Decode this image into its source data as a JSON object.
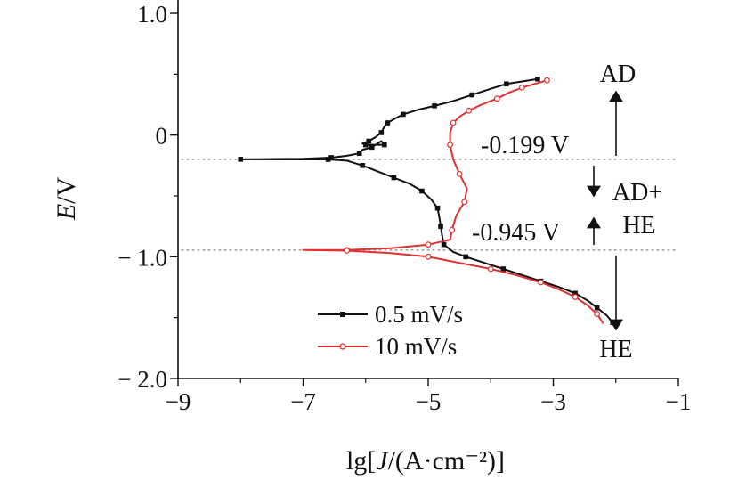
{
  "chart_data": {
    "type": "line",
    "xlabel": "lg[J/(A·cm⁻²)]",
    "ylabel": "E/V",
    "xlim": [
      -9,
      -1
    ],
    "ylim": [
      -2.0,
      1.0
    ],
    "x_ticks": [
      -9,
      -7,
      -5,
      -3,
      -1
    ],
    "x_tick_labels": [
      "−9",
      "−7",
      "−5",
      "−3",
      "−1"
    ],
    "y_ticks": [
      1.0,
      0,
      -1.0,
      -2.0
    ],
    "y_tick_labels": [
      "1.0",
      "0",
      "− 1.0",
      "− 2.0"
    ],
    "grid": false,
    "legend_position": "bottom-left",
    "reference_lines": [
      {
        "y": -0.199,
        "label": "-0.199 V"
      },
      {
        "y": -0.945,
        "label": "-0.945 V"
      }
    ],
    "region_labels": [
      "AD",
      "AD+",
      "HE",
      "HE"
    ],
    "series": [
      {
        "name": "0.5 mV/s",
        "color": "#111111",
        "marker": "filled-square",
        "points": [
          [
            -3.25,
            0.46
          ],
          [
            -3.5,
            0.44
          ],
          [
            -3.75,
            0.42
          ],
          [
            -4.0,
            0.38
          ],
          [
            -4.3,
            0.33
          ],
          [
            -4.6,
            0.28
          ],
          [
            -4.9,
            0.24
          ],
          [
            -5.15,
            0.21
          ],
          [
            -5.4,
            0.17
          ],
          [
            -5.55,
            0.13
          ],
          [
            -5.65,
            0.1
          ],
          [
            -5.7,
            0.07
          ],
          [
            -5.75,
            0.02
          ],
          [
            -5.85,
            -0.02
          ],
          [
            -5.95,
            -0.05
          ],
          [
            -6.05,
            -0.07
          ],
          [
            -6.0,
            -0.08
          ],
          [
            -5.85,
            -0.08
          ],
          [
            -5.7,
            -0.08
          ],
          [
            -5.75,
            -0.05
          ],
          [
            -5.9,
            -0.1
          ],
          [
            -6.05,
            -0.12
          ],
          [
            -6.1,
            -0.15
          ],
          [
            -6.3,
            -0.17
          ],
          [
            -6.55,
            -0.185
          ],
          [
            -7.0,
            -0.194
          ],
          [
            -8.0,
            -0.199
          ],
          [
            -7.0,
            -0.2
          ],
          [
            -6.6,
            -0.2
          ],
          [
            -6.3,
            -0.21
          ],
          [
            -6.05,
            -0.25
          ],
          [
            -5.8,
            -0.3
          ],
          [
            -5.55,
            -0.35
          ],
          [
            -5.3,
            -0.4
          ],
          [
            -5.1,
            -0.46
          ],
          [
            -4.95,
            -0.53
          ],
          [
            -4.85,
            -0.6
          ],
          [
            -4.82,
            -0.68
          ],
          [
            -4.8,
            -0.75
          ],
          [
            -4.78,
            -0.82
          ],
          [
            -4.75,
            -0.9
          ],
          [
            -4.6,
            -0.96
          ],
          [
            -4.4,
            -1.0
          ],
          [
            -4.1,
            -1.05
          ],
          [
            -3.8,
            -1.1
          ],
          [
            -3.5,
            -1.15
          ],
          [
            -3.2,
            -1.2
          ],
          [
            -2.9,
            -1.25
          ],
          [
            -2.65,
            -1.3
          ],
          [
            -2.45,
            -1.36
          ],
          [
            -2.3,
            -1.42
          ],
          [
            -2.15,
            -1.48
          ],
          [
            -2.05,
            -1.54
          ]
        ]
      },
      {
        "name": "10 mV/s",
        "color": "#e03030",
        "marker": "open-circle",
        "points": [
          [
            -3.1,
            0.45
          ],
          [
            -3.3,
            0.42
          ],
          [
            -3.5,
            0.39
          ],
          [
            -3.7,
            0.35
          ],
          [
            -3.9,
            0.3
          ],
          [
            -4.15,
            0.25
          ],
          [
            -4.35,
            0.2
          ],
          [
            -4.5,
            0.15
          ],
          [
            -4.6,
            0.1
          ],
          [
            -4.65,
            0.02
          ],
          [
            -4.65,
            -0.08
          ],
          [
            -4.6,
            -0.2
          ],
          [
            -4.5,
            -0.32
          ],
          [
            -4.38,
            -0.44
          ],
          [
            -4.42,
            -0.55
          ],
          [
            -4.55,
            -0.66
          ],
          [
            -4.62,
            -0.78
          ],
          [
            -4.65,
            -0.86
          ],
          [
            -5.0,
            -0.9
          ],
          [
            -5.6,
            -0.93
          ],
          [
            -6.3,
            -0.945
          ],
          [
            -7.0,
            -0.945
          ],
          [
            -6.3,
            -0.95
          ],
          [
            -5.6,
            -0.97
          ],
          [
            -5.0,
            -1.0
          ],
          [
            -4.5,
            -1.05
          ],
          [
            -4.0,
            -1.1
          ],
          [
            -3.6,
            -1.15
          ],
          [
            -3.2,
            -1.21
          ],
          [
            -2.9,
            -1.27
          ],
          [
            -2.65,
            -1.33
          ],
          [
            -2.45,
            -1.4
          ],
          [
            -2.3,
            -1.47
          ],
          [
            -2.2,
            -1.55
          ]
        ]
      }
    ]
  },
  "labels": {
    "ad": "AD",
    "ad_he_line1": "AD+",
    "ad_he_line2": "HE",
    "he": "HE",
    "ref1": "-0.199 V",
    "ref2": "-0.945 V",
    "xlabel_pre": "lg[",
    "xlabel_j": "J",
    "xlabel_post": "/(A·cm⁻²)]",
    "ylabel_e": "E",
    "ylabel_v": "/V"
  }
}
